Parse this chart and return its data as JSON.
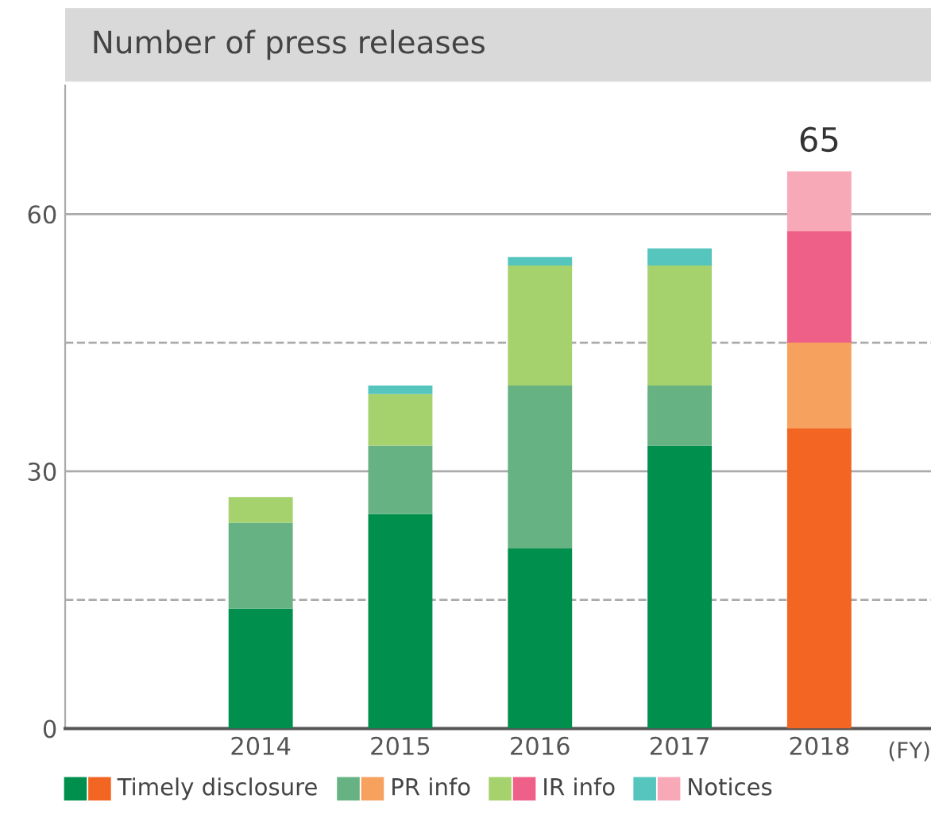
{
  "chart_data": {
    "type": "bar",
    "title": "Number of press releases",
    "xlabel": "(FY)",
    "categories": [
      "2014",
      "2015",
      "2016",
      "2017",
      "2018"
    ],
    "stacked": true,
    "series": [
      {
        "name": "Timely disclosure",
        "colors": [
          "#008f4c",
          "#008f4c",
          "#008f4c",
          "#008f4c",
          "#f26522"
        ],
        "values": [
          14,
          25,
          21,
          33,
          35
        ]
      },
      {
        "name": "PR info",
        "colors": [
          "#66b283",
          "#66b283",
          "#66b283",
          "#66b283",
          "#f7a15f"
        ],
        "values": [
          10,
          8,
          19,
          7,
          10
        ]
      },
      {
        "name": "IR info",
        "colors": [
          "#a6d26e",
          "#a6d26e",
          "#a6d26e",
          "#a6d26e",
          "#ef6088"
        ],
        "values": [
          3,
          6,
          14,
          14,
          13
        ]
      },
      {
        "name": "Notices",
        "colors": [
          "#55c5be",
          "#55c5be",
          "#55c5be",
          "#55c5be",
          "#f7a9b8"
        ],
        "values": [
          null,
          1,
          1,
          2,
          7
        ]
      }
    ],
    "totals": [
      null,
      null,
      null,
      null,
      "65"
    ],
    "ylim": [
      0,
      75
    ],
    "yticks": [
      0,
      {
        "value": 15,
        "label": null
      },
      30,
      {
        "value": 45,
        "label": null
      },
      60
    ],
    "grid": "y",
    "legend": "bottom"
  }
}
